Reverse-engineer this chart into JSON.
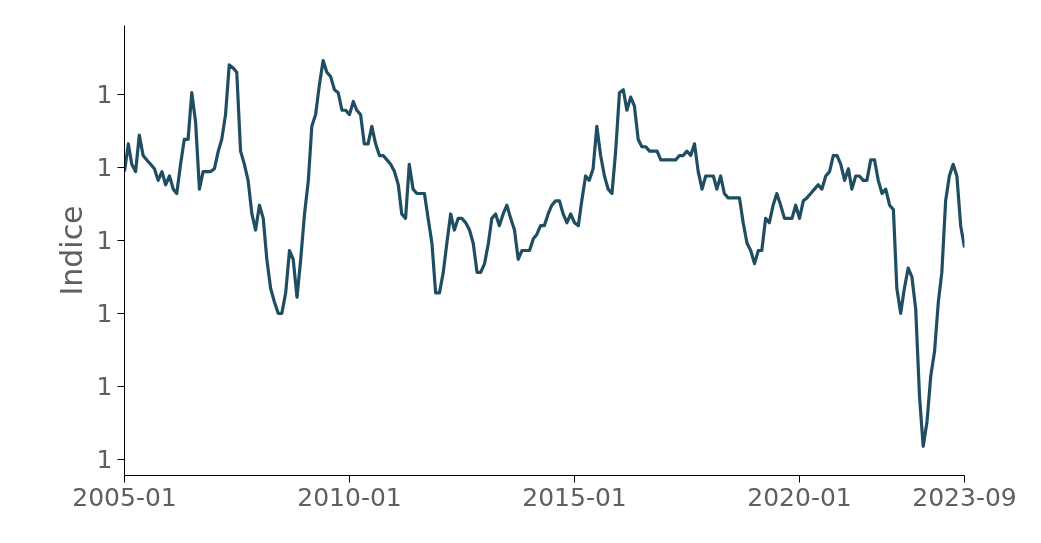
{
  "chart_data": {
    "type": "line",
    "ylabel": "Indice",
    "x": [
      "2005-01",
      "2005-02",
      "2005-03",
      "2005-04",
      "2005-05",
      "2005-06",
      "2005-07",
      "2005-08",
      "2005-09",
      "2005-10",
      "2005-11",
      "2005-12",
      "2006-01",
      "2006-02",
      "2006-03",
      "2006-04",
      "2006-05",
      "2006-06",
      "2006-07",
      "2006-08",
      "2006-09",
      "2006-10",
      "2006-11",
      "2006-12",
      "2007-01",
      "2007-02",
      "2007-03",
      "2007-04",
      "2007-05",
      "2007-06",
      "2007-07",
      "2007-08",
      "2007-09",
      "2007-10",
      "2007-11",
      "2007-12",
      "2008-01",
      "2008-02",
      "2008-03",
      "2008-04",
      "2008-05",
      "2008-06",
      "2008-07",
      "2008-08",
      "2008-09",
      "2008-10",
      "2008-11",
      "2008-12",
      "2009-01",
      "2009-02",
      "2009-03",
      "2009-04",
      "2009-05",
      "2009-06",
      "2009-07",
      "2009-08",
      "2009-09",
      "2009-10",
      "2009-11",
      "2009-12",
      "2010-01",
      "2010-02",
      "2010-03",
      "2010-04",
      "2010-05",
      "2010-06",
      "2010-07",
      "2010-08",
      "2010-09",
      "2010-10",
      "2010-11",
      "2010-12",
      "2011-01",
      "2011-02",
      "2011-03",
      "2011-04",
      "2011-05",
      "2011-06",
      "2011-07",
      "2011-08",
      "2011-09",
      "2011-10",
      "2011-11",
      "2011-12",
      "2012-01",
      "2012-02",
      "2012-03",
      "2012-04",
      "2012-05",
      "2012-06",
      "2012-07",
      "2012-08",
      "2012-09",
      "2012-10",
      "2012-11",
      "2012-12",
      "2013-01",
      "2013-02",
      "2013-03",
      "2013-04",
      "2013-05",
      "2013-06",
      "2013-07",
      "2013-08",
      "2013-09",
      "2013-10",
      "2013-11",
      "2013-12",
      "2014-01",
      "2014-02",
      "2014-03",
      "2014-04",
      "2014-05",
      "2014-06",
      "2014-07",
      "2014-08",
      "2014-09",
      "2014-10",
      "2014-11",
      "2014-12",
      "2015-01",
      "2015-02",
      "2015-03",
      "2015-04",
      "2015-05",
      "2015-06",
      "2015-07",
      "2015-08",
      "2015-09",
      "2015-10",
      "2015-11",
      "2015-12",
      "2016-01",
      "2016-02",
      "2016-03",
      "2016-04",
      "2016-05",
      "2016-06",
      "2016-07",
      "2016-08",
      "2016-09",
      "2016-10",
      "2016-11",
      "2016-12",
      "2017-01",
      "2017-02",
      "2017-03",
      "2017-04",
      "2017-05",
      "2017-06",
      "2017-07",
      "2017-08",
      "2017-09",
      "2017-10",
      "2017-11",
      "2017-12",
      "2018-01",
      "2018-02",
      "2018-03",
      "2018-04",
      "2018-05",
      "2018-06",
      "2018-07",
      "2018-08",
      "2018-09",
      "2018-10",
      "2018-11",
      "2018-12",
      "2019-01",
      "2019-02",
      "2019-03",
      "2019-04",
      "2019-05",
      "2019-06",
      "2019-07",
      "2019-08",
      "2019-09",
      "2019-10",
      "2019-11",
      "2019-12",
      "2020-01",
      "2020-02",
      "2020-03",
      "2020-04",
      "2020-05",
      "2020-06",
      "2020-07",
      "2020-08",
      "2020-09",
      "2020-10",
      "2020-11",
      "2020-12",
      "2021-01",
      "2021-02",
      "2021-03",
      "2021-04",
      "2021-05",
      "2021-06",
      "2021-07",
      "2021-08",
      "2021-09",
      "2021-10",
      "2021-11",
      "2021-12",
      "2022-01",
      "2022-02",
      "2022-03",
      "2022-04",
      "2022-05",
      "2022-06",
      "2022-07",
      "2022-08",
      "2022-09",
      "2022-10",
      "2022-11",
      "2022-12",
      "2023-01",
      "2023-02",
      "2023-03",
      "2023-04",
      "2023-05",
      "2023-06",
      "2023-07",
      "2023-08",
      "2023-09"
    ],
    "series": [
      {
        "color": "#1f4e63",
        "values": [
          1.097,
          1.116,
          1.102,
          1.097,
          1.122,
          1.108,
          1.105,
          1.102,
          1.099,
          1.091,
          1.097,
          1.088,
          1.094,
          1.085,
          1.082,
          1.102,
          1.119,
          1.119,
          1.151,
          1.131,
          1.085,
          1.097,
          1.097,
          1.097,
          1.099,
          1.111,
          1.119,
          1.136,
          1.17,
          1.168,
          1.165,
          1.111,
          1.102,
          1.091,
          1.068,
          1.057,
          1.074,
          1.065,
          1.037,
          1.017,
          1.008,
          1.0,
          1.0,
          1.014,
          1.043,
          1.037,
          1.011,
          1.037,
          1.068,
          1.091,
          1.128,
          1.136,
          1.156,
          1.173,
          1.165,
          1.162,
          1.153,
          1.151,
          1.139,
          1.139,
          1.136,
          1.145,
          1.139,
          1.136,
          1.116,
          1.116,
          1.128,
          1.116,
          1.108,
          1.108,
          1.105,
          1.102,
          1.097,
          1.088,
          1.068,
          1.065,
          1.102,
          1.085,
          1.082,
          1.082,
          1.082,
          1.065,
          1.048,
          1.014,
          1.014,
          1.028,
          1.048,
          1.068,
          1.057,
          1.065,
          1.065,
          1.062,
          1.057,
          1.048,
          1.028,
          1.028,
          1.034,
          1.048,
          1.065,
          1.068,
          1.06,
          1.068,
          1.074,
          1.065,
          1.057,
          1.037,
          1.043,
          1.043,
          1.043,
          1.051,
          1.054,
          1.06,
          1.06,
          1.068,
          1.074,
          1.077,
          1.077,
          1.068,
          1.062,
          1.068,
          1.062,
          1.06,
          1.077,
          1.094,
          1.091,
          1.099,
          1.128,
          1.108,
          1.094,
          1.085,
          1.082,
          1.111,
          1.151,
          1.153,
          1.139,
          1.148,
          1.142,
          1.119,
          1.114,
          1.114,
          1.111,
          1.111,
          1.111,
          1.105,
          1.105,
          1.105,
          1.105,
          1.105,
          1.108,
          1.108,
          1.111,
          1.108,
          1.116,
          1.097,
          1.085,
          1.094,
          1.094,
          1.094,
          1.085,
          1.094,
          1.082,
          1.079,
          1.079,
          1.079,
          1.079,
          1.062,
          1.048,
          1.043,
          1.034,
          1.043,
          1.043,
          1.065,
          1.062,
          1.074,
          1.082,
          1.074,
          1.065,
          1.065,
          1.065,
          1.074,
          1.065,
          1.077,
          1.079,
          1.082,
          1.085,
          1.088,
          1.085,
          1.094,
          1.097,
          1.108,
          1.108,
          1.102,
          1.091,
          1.099,
          1.085,
          1.094,
          1.094,
          1.091,
          1.091,
          1.105,
          1.105,
          1.091,
          1.082,
          1.085,
          1.074,
          1.071,
          1.017,
          1.0,
          1.017,
          1.031,
          1.025,
          1.003,
          0.943,
          0.909,
          0.926,
          0.957,
          0.974,
          1.008,
          1.028,
          1.077,
          1.094,
          1.102,
          1.094,
          1.06,
          1.045
        ]
      }
    ],
    "xlim": [
      "2005-01",
      "2023-09"
    ],
    "xticks": [
      "2005-01",
      "2010-01",
      "2015-01",
      "2020-01",
      "2023-09"
    ],
    "ylim": [
      0.889,
      1.197
    ],
    "yticks": [
      {
        "value": 0.9,
        "label": "1"
      },
      {
        "value": 0.95,
        "label": "1"
      },
      {
        "value": 1.0,
        "label": "1"
      },
      {
        "value": 1.05,
        "label": "1"
      },
      {
        "value": 1.1,
        "label": "1"
      },
      {
        "value": 1.15,
        "label": "1"
      }
    ],
    "grid": false,
    "line_style": "solid",
    "marker": "none"
  }
}
